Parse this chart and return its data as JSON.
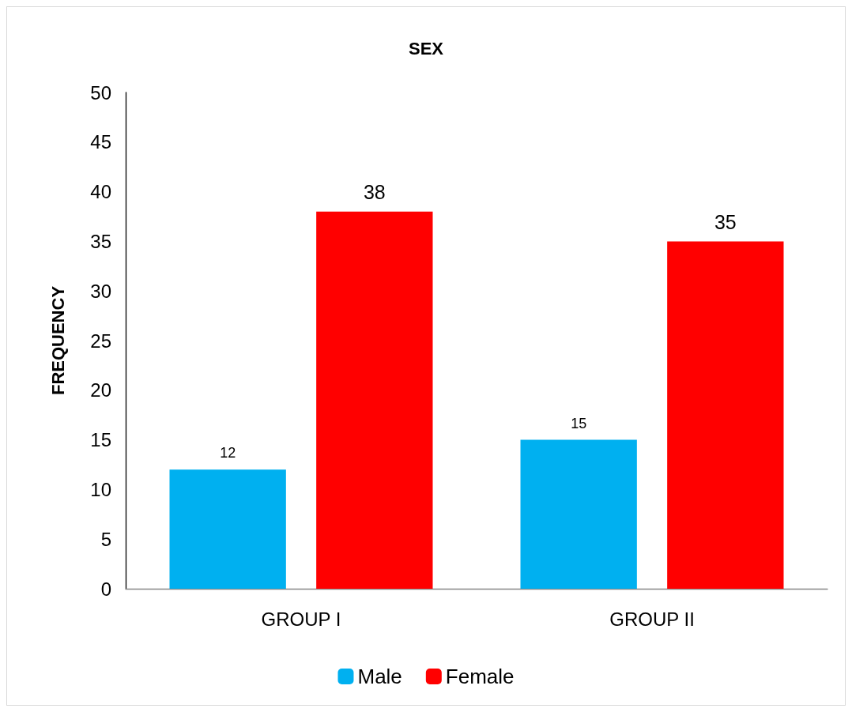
{
  "chart_data": {
    "type": "bar",
    "title": "SEX",
    "ylabel": "FREQUENCY",
    "categories": [
      "GROUP I",
      "GROUP II"
    ],
    "series": [
      {
        "name": "Male",
        "color": "#00b0f0",
        "values": [
          12,
          15
        ]
      },
      {
        "name": "Female",
        "color": "#ff0000",
        "values": [
          38,
          35
        ]
      }
    ],
    "ylim": [
      0,
      50
    ],
    "yticks": [
      0,
      5,
      10,
      15,
      20,
      25,
      30,
      35,
      40,
      45,
      50
    ],
    "grid": false,
    "legend": "bottom",
    "data_labels": true
  }
}
